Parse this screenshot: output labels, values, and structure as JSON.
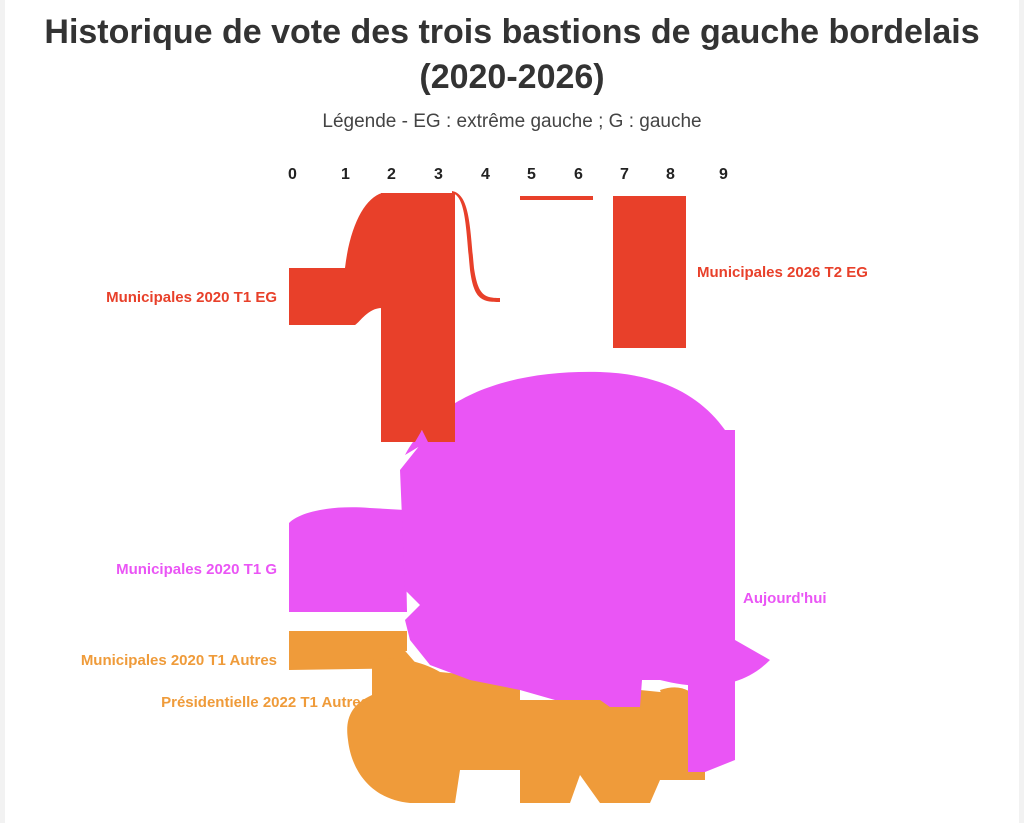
{
  "title": "Historique de vote des trois bastions de gauche bordelais (2020-2026)",
  "subtitle": "Légende - EG : extrême gauche ; G : gauche",
  "x_ticks": [
    "0",
    "1",
    "2",
    "3",
    "4",
    "5",
    "6",
    "7",
    "8",
    "9"
  ],
  "colors": {
    "eg": "#e8402a",
    "g": "#ea55f5",
    "autres": "#ef9b3a",
    "title": "#333333"
  },
  "labels": {
    "mun2020_eg": "Municipales 2020 T1 EG",
    "mun2026_eg": "Municipales 2026 T2 EG",
    "mun2020_g": "Municipales 2020 T1 G",
    "aujourdhui": "Aujourd'hui",
    "mun2020_autres": "Municipales 2020 T1 Autres",
    "pres2022_autres": "Présidentielle 2022 T1 Autres"
  }
}
